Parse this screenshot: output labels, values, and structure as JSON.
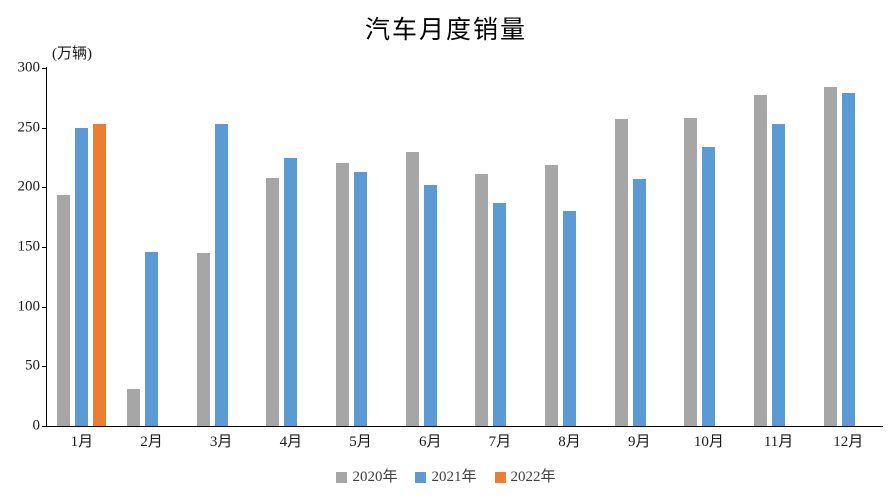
{
  "title": "汽车月度销量",
  "y_axis_unit": "(万辆)",
  "chart_data": {
    "type": "bar",
    "title": "汽车月度销量",
    "ylabel": "(万辆)",
    "xlabel": "",
    "categories": [
      "1月",
      "2月",
      "3月",
      "4月",
      "5月",
      "6月",
      "7月",
      "8月",
      "9月",
      "10月",
      "11月",
      "12月"
    ],
    "series": [
      {
        "name": "2020年",
        "color": "#A6A6A6",
        "values": [
          194,
          31,
          145,
          208,
          220,
          230,
          211,
          219,
          257,
          258,
          277,
          284
        ]
      },
      {
        "name": "2021年",
        "color": "#5B9BD5",
        "values": [
          250,
          146,
          253,
          225,
          213,
          202,
          187,
          180,
          207,
          234,
          253,
          279
        ]
      },
      {
        "name": "2022年",
        "color": "#ED7D31",
        "values": [
          253,
          null,
          null,
          null,
          null,
          null,
          null,
          null,
          null,
          null,
          null,
          null
        ]
      }
    ],
    "ylim": [
      0,
      300
    ],
    "y_ticks": [
      0,
      50,
      100,
      150,
      200,
      250,
      300
    ],
    "grid": false,
    "legend_position": "bottom",
    "axis_color": "#000000",
    "background": "#ffffff"
  }
}
